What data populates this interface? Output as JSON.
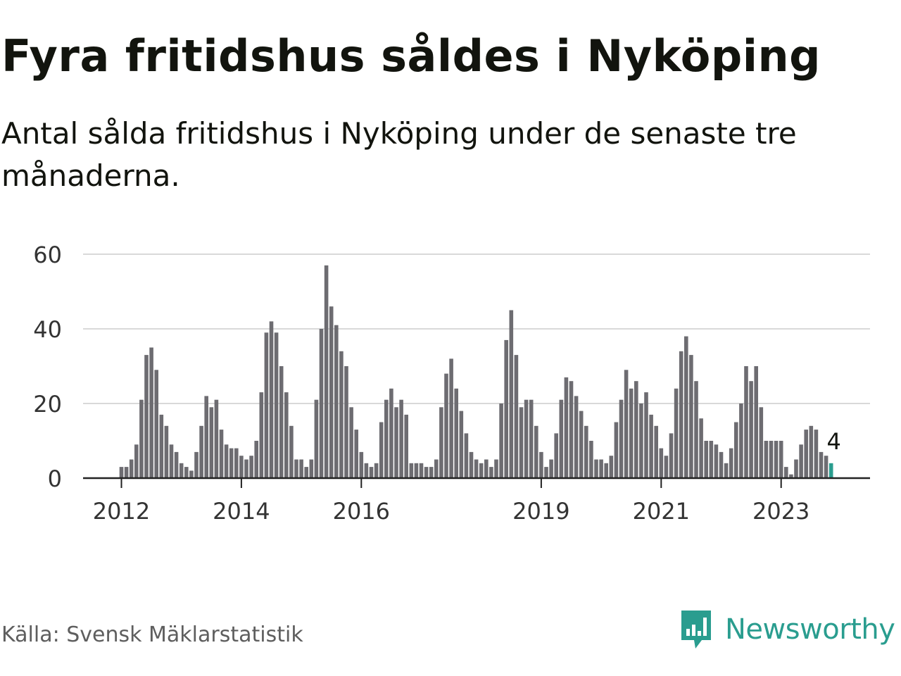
{
  "header": {
    "title": "Fyra fritidshus såldes i Nyköping",
    "subtitle": "Antal sålda fritidshus i Nyköping under de senaste tre månaderna."
  },
  "footer": {
    "source": "Källa: Svensk Mäklarstatistik",
    "brand": "Newsworthy",
    "brand_icon": "newsworthy-logo-icon"
  },
  "colors": {
    "bar": "#6d6c71",
    "highlight": "#2a9d8f",
    "grid": "#d9d9d9",
    "axis": "#222222",
    "text": "#12140e",
    "brand": "#2a9d8f"
  },
  "chart_data": {
    "type": "bar",
    "title": "Fyra fritidshus såldes i Nyköping",
    "subtitle": "Antal sålda fritidshus i Nyköping under de senaste tre månaderna.",
    "xlabel": "",
    "ylabel": "",
    "ylim": [
      0,
      60
    ],
    "yticks": [
      0,
      20,
      40,
      60
    ],
    "xticks": [
      {
        "label": "2012",
        "index": 0
      },
      {
        "label": "2014",
        "index": 24
      },
      {
        "label": "2016",
        "index": 48
      },
      {
        "label": "2019",
        "index": 84
      },
      {
        "label": "2021",
        "index": 108
      },
      {
        "label": "2023",
        "index": 132
      }
    ],
    "start_month": "2012-01",
    "grid": true,
    "legend": "none",
    "highlight_last": true,
    "last_label": "4",
    "values": [
      3,
      3,
      5,
      9,
      21,
      33,
      35,
      29,
      17,
      14,
      9,
      7,
      4,
      3,
      2,
      7,
      14,
      22,
      19,
      21,
      13,
      9,
      8,
      8,
      6,
      5,
      6,
      10,
      23,
      39,
      42,
      39,
      30,
      23,
      14,
      5,
      5,
      3,
      5,
      21,
      40,
      57,
      46,
      41,
      34,
      30,
      19,
      13,
      7,
      4,
      3,
      4,
      15,
      21,
      24,
      19,
      21,
      17,
      4,
      4,
      4,
      3,
      3,
      5,
      19,
      28,
      32,
      24,
      18,
      12,
      7,
      5,
      4,
      5,
      3,
      5,
      20,
      37,
      45,
      33,
      19,
      21,
      21,
      14,
      7,
      3,
      5,
      12,
      21,
      27,
      26,
      22,
      18,
      14,
      10,
      5,
      5,
      4,
      6,
      15,
      21,
      29,
      24,
      26,
      20,
      23,
      17,
      14,
      8,
      6,
      12,
      24,
      34,
      38,
      33,
      26,
      16,
      10,
      10,
      9,
      7,
      4,
      8,
      15,
      20,
      30,
      26,
      30,
      19,
      10,
      10,
      10,
      10,
      3,
      1,
      5,
      9,
      13,
      14,
      13,
      7,
      6,
      4
    ]
  }
}
